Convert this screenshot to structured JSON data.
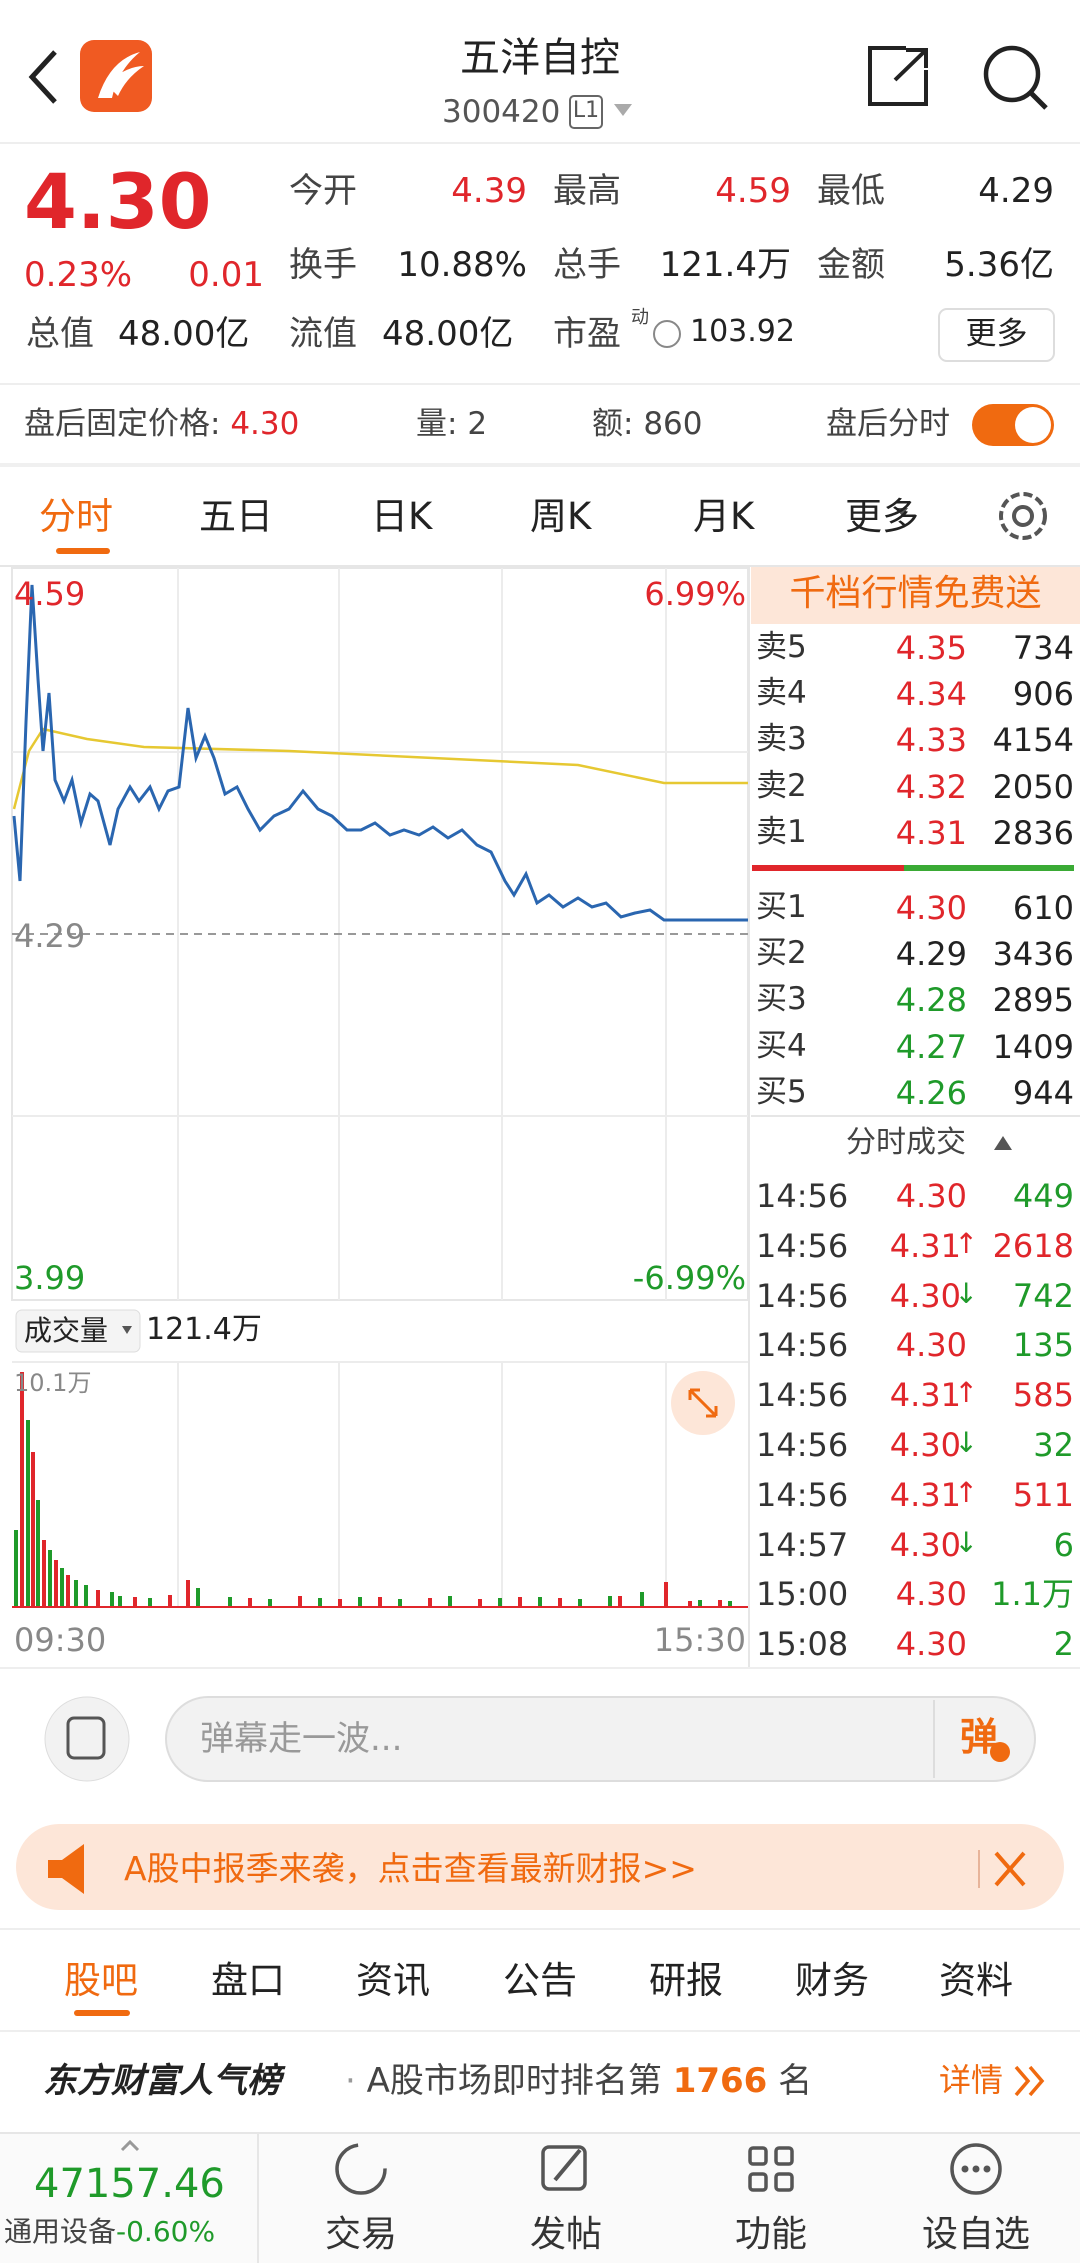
{
  "header": {
    "title": "五洋自控",
    "code": "300420",
    "level": "L1"
  },
  "quote": {
    "price": "4.30",
    "change_pct": "0.23%",
    "change": "0.01",
    "stats": [
      {
        "label": "今开",
        "value": "4.39"
      },
      {
        "label": "最高",
        "value": "4.59"
      },
      {
        "label": "最低",
        "value": "4.29"
      },
      {
        "label": "换手",
        "value": "10.88%"
      },
      {
        "label": "总手",
        "value": "121.4万"
      },
      {
        "label": "金额",
        "value": "5.36亿"
      },
      {
        "label": "总值",
        "value": "48.00亿"
      },
      {
        "label": "流值",
        "value": "48.00亿"
      },
      {
        "label": "市盈",
        "sup": "动",
        "value": "103.92"
      }
    ],
    "more": "更多"
  },
  "after_hours": {
    "price_label": "盘后固定价格:",
    "price": "4.30",
    "volume_label": "量:",
    "volume": "2",
    "amount_label": "额:",
    "amount": "860",
    "toggle_label": "盘后分时"
  },
  "tabs": [
    "分时",
    "五日",
    "日K",
    "周K",
    "月K",
    "更多"
  ],
  "chart": {
    "high": "4.59",
    "high_pct": "6.99%",
    "prev_close": "4.29",
    "low": "3.99",
    "low_pct": "-6.99%",
    "volume_label": "成交量",
    "volume_total": "121.4万",
    "volume_max": "10.1万",
    "start_time": "09:30",
    "end_time": "15:30"
  },
  "order_book": {
    "promo": "千档行情免费送",
    "asks": [
      {
        "label": "卖5",
        "price": "4.35",
        "volume": "734"
      },
      {
        "label": "卖4",
        "price": "4.34",
        "volume": "906"
      },
      {
        "label": "卖3",
        "price": "4.33",
        "volume": "4154"
      },
      {
        "label": "卖2",
        "price": "4.32",
        "volume": "2050"
      },
      {
        "label": "卖1",
        "price": "4.31",
        "volume": "2836"
      }
    ],
    "bids": [
      {
        "label": "买1",
        "price": "4.30",
        "volume": "610"
      },
      {
        "label": "买2",
        "price": "4.29",
        "volume": "3436"
      },
      {
        "label": "买3",
        "price": "4.28",
        "volume": "2895"
      },
      {
        "label": "买4",
        "price": "4.27",
        "volume": "1409"
      },
      {
        "label": "买5",
        "price": "4.26",
        "volume": "944"
      }
    ]
  },
  "trades": {
    "title": "分时成交",
    "rows": [
      {
        "time": "14:56",
        "price": "4.30",
        "volume": "449"
      },
      {
        "time": "14:56",
        "price": "4.31",
        "arrow": "↑",
        "volume": "2618"
      },
      {
        "time": "14:56",
        "price": "4.30",
        "arrow": "↓",
        "volume": "742"
      },
      {
        "time": "14:56",
        "price": "4.30",
        "volume": "135"
      },
      {
        "time": "14:56",
        "price": "4.31",
        "arrow": "↑",
        "volume": "585"
      },
      {
        "time": "14:56",
        "price": "4.30",
        "arrow": "↓",
        "volume": "32"
      },
      {
        "time": "14:56",
        "price": "4.31",
        "arrow": "↑",
        "volume": "511"
      },
      {
        "time": "14:57",
        "price": "4.30",
        "arrow": "↓",
        "volume": "6"
      },
      {
        "time": "15:00",
        "price": "4.30",
        "volume": "1.1万"
      },
      {
        "time": "15:08",
        "price": "4.30",
        "volume": "2"
      }
    ]
  },
  "comment": {
    "placeholder": "弹幕走一波...",
    "button": "弹"
  },
  "banner": "A股中报季来袭，点击查看最新财报>>",
  "bottom_tabs": [
    "股吧",
    "盘口",
    "资讯",
    "公告",
    "研报",
    "财务",
    "资料"
  ],
  "ranking": {
    "brand": "东方财富人气榜",
    "text": "A股市场即时排名第",
    "rank": "1766",
    "unit": "名",
    "details": "详情"
  },
  "index": {
    "value": "47157.46",
    "name": "通用设备",
    "change": "-0.60%"
  },
  "nav": [
    "交易",
    "发帖",
    "功能",
    "设自选"
  ]
}
